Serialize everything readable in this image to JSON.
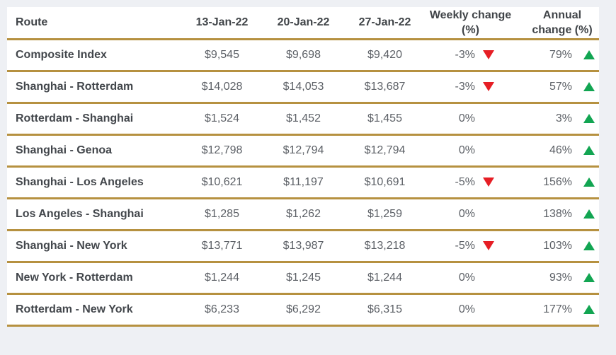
{
  "chart_data": {
    "type": "table",
    "columns": [
      "Route",
      "13-Jan-22",
      "20-Jan-22",
      "27-Jan-22",
      "Weekly change (%)",
      "Annual change (%)"
    ],
    "rows": [
      {
        "route": "Composite Index",
        "jan13": "$9,545",
        "jan20": "$9,698",
        "jan27": "$9,420",
        "weekly_change": "-3%",
        "weekly_direction": "down",
        "annual_change": "79%",
        "annual_direction": "up"
      },
      {
        "route": "Shanghai - Rotterdam",
        "jan13": "$14,028",
        "jan20": "$14,053",
        "jan27": "$13,687",
        "weekly_change": "-3%",
        "weekly_direction": "down",
        "annual_change": "57%",
        "annual_direction": "up"
      },
      {
        "route": "Rotterdam - Shanghai",
        "jan13": "$1,524",
        "jan20": "$1,452",
        "jan27": "$1,455",
        "weekly_change": "0%",
        "weekly_direction": "none",
        "annual_change": "3%",
        "annual_direction": "up"
      },
      {
        "route": "Shanghai - Genoa",
        "jan13": "$12,798",
        "jan20": "$12,794",
        "jan27": "$12,794",
        "weekly_change": "0%",
        "weekly_direction": "none",
        "annual_change": "46%",
        "annual_direction": "up"
      },
      {
        "route": "Shanghai - Los Angeles",
        "jan13": "$10,621",
        "jan20": "$11,197",
        "jan27": "$10,691",
        "weekly_change": "-5%",
        "weekly_direction": "down",
        "annual_change": "156%",
        "annual_direction": "up"
      },
      {
        "route": "Los Angeles - Shanghai",
        "jan13": "$1,285",
        "jan20": "$1,262",
        "jan27": "$1,259",
        "weekly_change": "0%",
        "weekly_direction": "none",
        "annual_change": "138%",
        "annual_direction": "up"
      },
      {
        "route": "Shanghai - New York",
        "jan13": "$13,771",
        "jan20": "$13,987",
        "jan27": "$13,218",
        "weekly_change": "-5%",
        "weekly_direction": "down",
        "annual_change": "103%",
        "annual_direction": "up"
      },
      {
        "route": "New York - Rotterdam",
        "jan13": "$1,244",
        "jan20": "$1,245",
        "jan27": "$1,244",
        "weekly_change": "0%",
        "weekly_direction": "none",
        "annual_change": "93%",
        "annual_direction": "up"
      },
      {
        "route": "Rotterdam - New York",
        "jan13": "$6,233",
        "jan20": "$6,292",
        "jan27": "$6,315",
        "weekly_change": "0%",
        "weekly_direction": "none",
        "annual_change": "177%",
        "annual_direction": "up"
      }
    ],
    "layout": {
      "grid": "horizontal-gold-dividers",
      "legend_position": "none"
    }
  },
  "colors": {
    "divider_gold": "#b69140",
    "page_background": "#eef0f4",
    "table_background": "#ffffff",
    "header_text": "#404448",
    "route_text": "#43474c",
    "value_text": "#5c6066",
    "down_red": "#e61e25",
    "up_green": "#12a552"
  }
}
